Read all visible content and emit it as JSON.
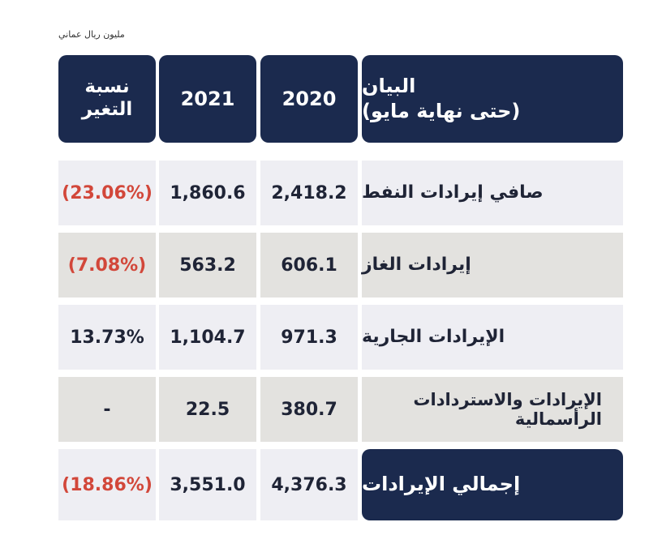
{
  "unit_note": "مليون ريال عماني",
  "header": {
    "label_line1": "البيان",
    "label_line2": "(حتى نهاية مايو)",
    "col_2020": "2020",
    "col_2021": "2021",
    "change_line1": "نسبة",
    "change_line2": "التغير"
  },
  "rows": [
    {
      "label": "صافي إيرادات النفط",
      "v2020": "2,418.2",
      "v2021": "1,860.6",
      "change": "(23.06%)"
    },
    {
      "label": "إيرادات الغاز",
      "v2020": "606.1",
      "v2021": "563.2",
      "change": "(7.08%)"
    },
    {
      "label": "الإيرادات الجارية",
      "v2020": "971.3",
      "v2021": "1,104.7",
      "change": "13.73%"
    },
    {
      "label": "الإيرادات والاستردادات الرأسمالية",
      "v2020": "380.7",
      "v2021": "22.5",
      "change": "-"
    },
    {
      "label": "إجمالي الإيرادات",
      "v2020": "4,376.3",
      "v2021": "3,551.0",
      "change": "(18.86%)"
    }
  ],
  "colors": {
    "header_bg": "#1b2a4e",
    "negative": "#d2473a",
    "row_light": "#eeeef3",
    "row_grey": "#e3e2df"
  }
}
